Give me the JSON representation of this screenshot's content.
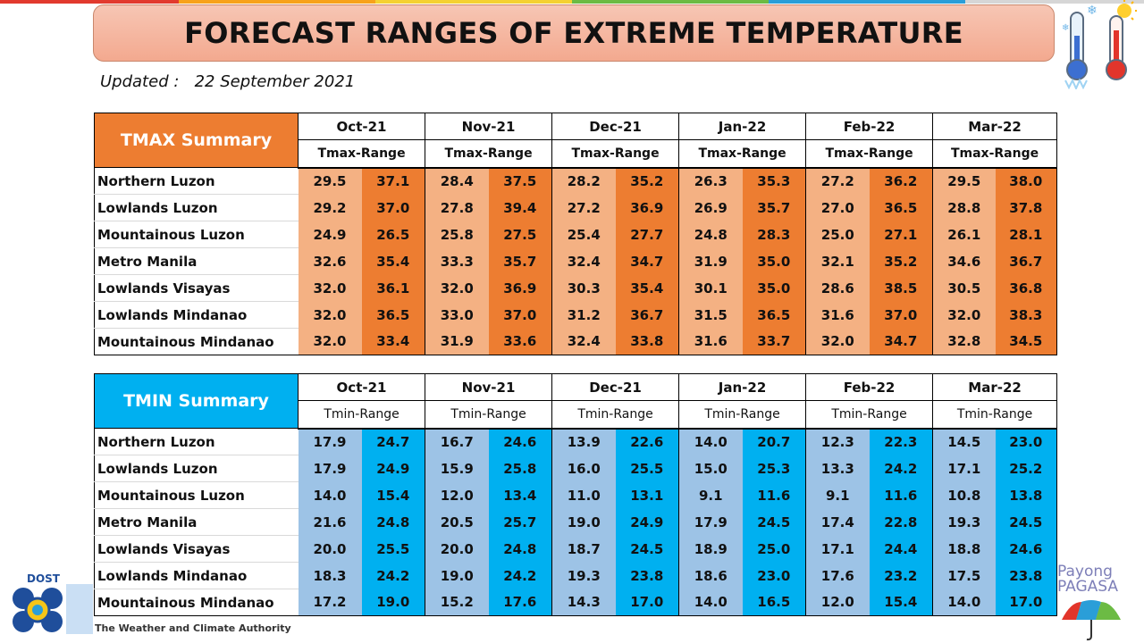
{
  "header": {
    "title": "FORECAST RANGES OF EXTREME TEMPERATURE",
    "updated_label": "Updated :",
    "updated_date": "22 September 2021"
  },
  "colors": {
    "tmax_dark": "#ed7d31",
    "tmax_light": "#f4b183",
    "tmin_dark": "#00b0f0",
    "tmin_light": "#9dc3e6",
    "title_bg": "#f4b59e"
  },
  "months": [
    "Oct-21",
    "Nov-21",
    "Dec-21",
    "Jan-22",
    "Feb-22",
    "Mar-22"
  ],
  "tmax": {
    "title": "TMAX Summary",
    "range_label": "Tmax-Range",
    "rows": [
      {
        "region": "Northern Luzon",
        "values": [
          "29.5",
          "37.1",
          "28.4",
          "37.5",
          "28.2",
          "35.2",
          "26.3",
          "35.3",
          "27.2",
          "36.2",
          "29.5",
          "38.0"
        ]
      },
      {
        "region": "Lowlands Luzon",
        "values": [
          "29.2",
          "37.0",
          "27.8",
          "39.4",
          "27.2",
          "36.9",
          "26.9",
          "35.7",
          "27.0",
          "36.5",
          "28.8",
          "37.8"
        ]
      },
      {
        "region": "Mountainous Luzon",
        "values": [
          "24.9",
          "26.5",
          "25.8",
          "27.5",
          "25.4",
          "27.7",
          "24.8",
          "28.3",
          "25.0",
          "27.1",
          "26.1",
          "28.1"
        ]
      },
      {
        "region": "Metro Manila",
        "values": [
          "32.6",
          "35.4",
          "33.3",
          "35.7",
          "32.4",
          "34.7",
          "31.9",
          "35.0",
          "32.1",
          "35.2",
          "34.6",
          "36.7"
        ]
      },
      {
        "region": "Lowlands Visayas",
        "values": [
          "32.0",
          "36.1",
          "32.0",
          "36.9",
          "30.3",
          "35.4",
          "30.1",
          "35.0",
          "28.6",
          "38.5",
          "30.5",
          "36.8"
        ]
      },
      {
        "region": "Lowlands Mindanao",
        "values": [
          "32.0",
          "36.5",
          "33.0",
          "37.0",
          "31.2",
          "36.7",
          "31.5",
          "36.5",
          "31.6",
          "37.0",
          "32.0",
          "38.3"
        ]
      },
      {
        "region": "Mountainous Mindanao",
        "values": [
          "32.0",
          "33.4",
          "31.9",
          "33.6",
          "32.4",
          "33.8",
          "31.6",
          "33.7",
          "32.0",
          "34.7",
          "32.8",
          "34.5"
        ]
      }
    ]
  },
  "tmin": {
    "title": "TMIN Summary",
    "range_label": "Tmin-Range",
    "rows": [
      {
        "region": "Northern Luzon",
        "values": [
          "17.9",
          "24.7",
          "16.7",
          "24.6",
          "13.9",
          "22.6",
          "14.0",
          "20.7",
          "12.3",
          "22.3",
          "14.5",
          "23.0"
        ]
      },
      {
        "region": "Lowlands Luzon",
        "values": [
          "17.9",
          "24.9",
          "15.9",
          "25.8",
          "16.0",
          "25.5",
          "15.0",
          "25.3",
          "13.3",
          "24.2",
          "17.1",
          "25.2"
        ]
      },
      {
        "region": "Mountainous Luzon",
        "values": [
          "14.0",
          "15.4",
          "12.0",
          "13.4",
          "11.0",
          "13.1",
          "9.1",
          "11.6",
          "9.1",
          "11.6",
          "10.8",
          "13.8"
        ]
      },
      {
        "region": "Metro Manila",
        "values": [
          "21.6",
          "24.8",
          "20.5",
          "25.7",
          "19.0",
          "24.9",
          "17.9",
          "24.5",
          "17.4",
          "22.8",
          "19.3",
          "24.5"
        ]
      },
      {
        "region": "Lowlands Visayas",
        "values": [
          "20.0",
          "25.5",
          "20.0",
          "24.8",
          "18.7",
          "24.5",
          "18.9",
          "25.0",
          "17.1",
          "24.4",
          "18.8",
          "24.6"
        ]
      },
      {
        "region": "Lowlands Mindanao",
        "values": [
          "18.3",
          "24.2",
          "19.0",
          "24.2",
          "19.3",
          "23.8",
          "18.6",
          "23.0",
          "17.6",
          "23.2",
          "17.5",
          "23.8"
        ]
      },
      {
        "region": "Mountainous Mindanao",
        "values": [
          "17.2",
          "19.0",
          "15.2",
          "17.6",
          "14.3",
          "17.0",
          "14.0",
          "16.5",
          "12.0",
          "15.4",
          "14.0",
          "17.0"
        ]
      }
    ]
  },
  "footer": {
    "dost_label": "DOST",
    "tagline": "The Weather and Climate Authority",
    "payong_line1": "Payong",
    "payong_line2": "PAGASA"
  },
  "icons": {
    "cold": "cold-thermometer-icon",
    "hot": "hot-thermometer-icon",
    "logo": "dost-pagasa-logo-icon",
    "umbrella": "umbrella-icon"
  }
}
